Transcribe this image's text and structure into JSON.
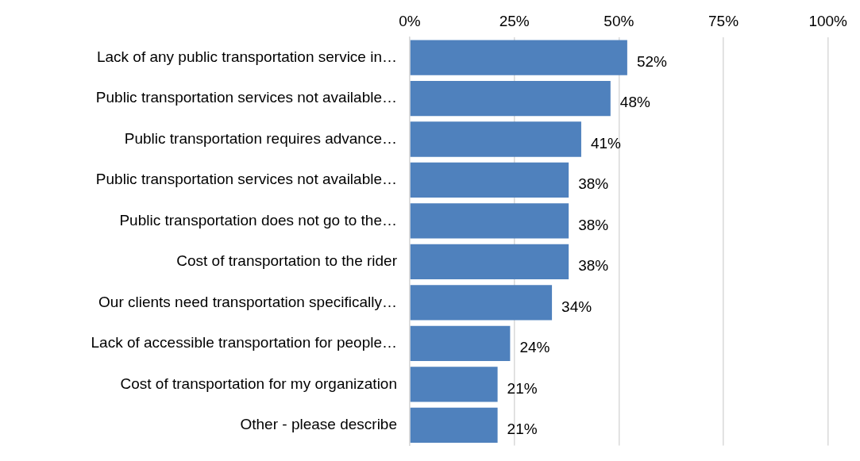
{
  "chart_data": {
    "type": "bar",
    "orientation": "horizontal",
    "categories": [
      "Lack of any public transportation service in…",
      "Public transportation services not available…",
      "Public transportation requires advance…",
      "Public transportation services not available…",
      "Public transportation does not go to the…",
      "Cost of transportation to the rider",
      "Our clients need transportation specifically…",
      "Lack of accessible transportation for people…",
      "Cost of transportation for my organization",
      "Other - please describe"
    ],
    "values": [
      52,
      48,
      41,
      38,
      38,
      38,
      34,
      24,
      21,
      21
    ],
    "value_labels": [
      "52%",
      "48%",
      "41%",
      "38%",
      "38%",
      "38%",
      "34%",
      "24%",
      "21%",
      "21%"
    ],
    "color": "#4f81bd",
    "xlim": [
      0,
      100
    ],
    "xticks": [
      {
        "value": 0,
        "label": "0%"
      },
      {
        "value": 25,
        "label": "25%"
      },
      {
        "value": 50,
        "label": "50%"
      },
      {
        "value": 75,
        "label": "75%"
      },
      {
        "value": 100,
        "label": "100%"
      }
    ],
    "grid": "x",
    "legend": false
  }
}
